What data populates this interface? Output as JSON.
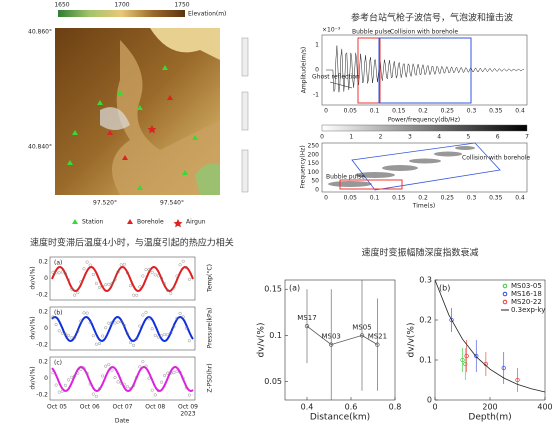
{
  "map": {
    "colorbar_ticks": [
      "1650",
      "1700",
      "1750"
    ],
    "colorbar_label": "Elevation(m)",
    "lat_ticks": [
      "40.860°",
      "40.840°"
    ],
    "lon_ticks": [
      "97.520°",
      "97.540°"
    ],
    "legend": [
      "Station",
      "Borehole",
      "Airgun"
    ]
  },
  "waveform": {
    "title": "参考台站气枪子波信号，气泡波和撞击波",
    "exponent": "×10⁻³",
    "ylabel": "Amplitude(m/s)",
    "yticks": [
      "1",
      "0",
      "-1"
    ],
    "xticks": [
      "0",
      "0.05",
      "0.1",
      "0.15",
      "0.2",
      "0.25",
      "0.3",
      "0.35",
      "0.4"
    ],
    "annotations": [
      "Bubble pulse",
      "Collision with borehole",
      "Ghost reflection"
    ]
  },
  "spectrogram": {
    "colorbar_label": "Power/frequency(db/Hz)",
    "colorbar_ticks": [
      "0",
      "1",
      "2",
      "3",
      "4",
      "5",
      "6",
      "7"
    ],
    "ylabel": "Frequency(Hz)",
    "yticks": [
      "250",
      "200",
      "150",
      "100",
      "50",
      "0"
    ],
    "xticks": [
      "0",
      "0.05",
      "0.1",
      "0.15",
      "0.2",
      "0.25",
      "0.3",
      "0.35",
      "0.4"
    ],
    "xlabel": "Time(s)",
    "annotations": [
      "Collision with borehole",
      "Bubble pulse"
    ]
  },
  "timeseries": {
    "title": "速度时变滞后温度4小时，与温度引起的热应力相关",
    "ylabel": "dv/v(%)",
    "left_ticks": [
      "0.2",
      "0",
      "-0.2"
    ],
    "panels": [
      {
        "label": "(a)",
        "right_label": "Temp(°C)"
      },
      {
        "label": "(b)",
        "right_label": "Pressure(kPa)"
      },
      {
        "label": "(c)",
        "right_label": "Z-PSD(hr)"
      }
    ],
    "xticks": [
      "Oct 05",
      "Oct 06",
      "Oct 07",
      "Oct 08",
      "Oct 09"
    ],
    "year": "2023",
    "xlabel": "Date"
  },
  "depth_title": "速度时变振幅随深度指数衰减",
  "chart_data": [
    {
      "type": "line",
      "panel_label": "(a)",
      "xlabel": "Distance(km)",
      "ylabel": "dv/v(%)",
      "xlim": [
        0.3,
        0.8
      ],
      "xticks": [
        0.4,
        0.6,
        0.8
      ],
      "ylim": [
        0.03,
        0.16
      ],
      "yticks": [
        0.05,
        0.1,
        0.15
      ],
      "color": "#555555",
      "x": [
        0.4,
        0.51,
        0.65,
        0.72
      ],
      "values": [
        0.11,
        0.09,
        0.1,
        0.09
      ],
      "errors": [
        0.04,
        0.06,
        0.06,
        0.05
      ],
      "point_labels": [
        "MS17",
        "MS03",
        "MS05",
        "MS21"
      ]
    },
    {
      "type": "scatter",
      "panel_label": "(b)",
      "xlabel": "Depth(m)",
      "ylabel": "dv/v(%)",
      "xlim": [
        0,
        400
      ],
      "xticks": [
        0,
        200,
        400
      ],
      "ylim": [
        0,
        0.3
      ],
      "yticks": [
        0,
        0.1,
        0.2,
        0.3
      ],
      "legend": "upper right",
      "series": [
        {
          "name": "MS03-05",
          "color": "#33cc33",
          "x": [
            100,
            110
          ],
          "values": [
            0.1,
            0.09
          ],
          "errors": [
            0.03,
            0.04
          ]
        },
        {
          "name": "MS16-18",
          "color": "#3344dd",
          "x": [
            60,
            150,
            250
          ],
          "values": [
            0.2,
            0.11,
            0.08
          ],
          "errors": [
            0.03,
            0.04,
            0.04
          ]
        },
        {
          "name": "MS20-22",
          "color": "#ee3333",
          "x": [
            115,
            185,
            300
          ],
          "values": [
            0.11,
            0.09,
            0.05
          ],
          "errors": [
            0.04,
            0.03,
            0.03
          ]
        },
        {
          "name": "0.3exp-ky",
          "color": "#222222",
          "type": "line",
          "x": [
            0,
            50,
            100,
            150,
            200,
            250,
            300,
            350,
            400
          ],
          "values": [
            0.3,
            0.213,
            0.152,
            0.108,
            0.077,
            0.055,
            0.039,
            0.028,
            0.02
          ]
        }
      ]
    }
  ]
}
